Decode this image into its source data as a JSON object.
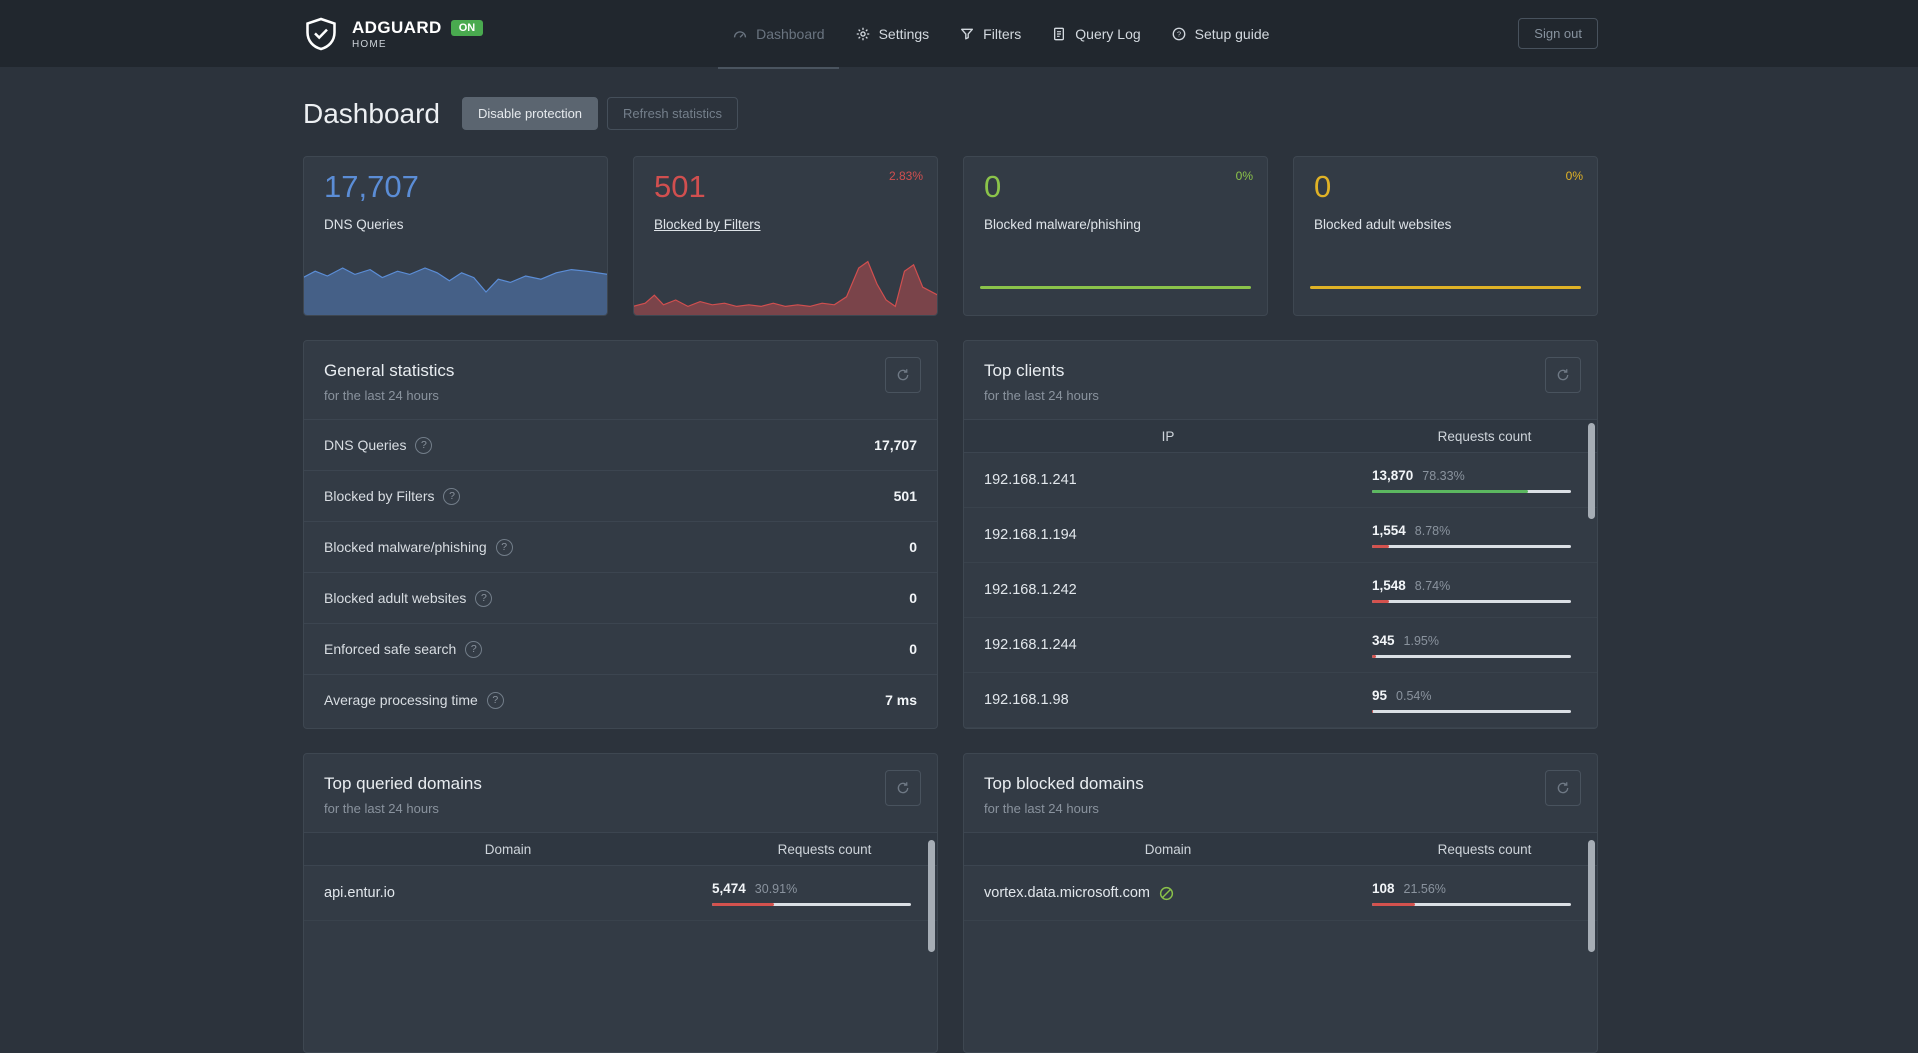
{
  "theme": {
    "accent_blue": "#5b8dd6",
    "accent_red": "#d14f4f",
    "accent_green": "#8bc34a",
    "accent_yellow": "#e0b226",
    "bar_green": "#5cb860",
    "bar_red": "#d4524e",
    "badge_green": "#49aa4f"
  },
  "navbar": {
    "brand": {
      "title": "ADGUARD",
      "subtitle": "HOME",
      "status_badge": "ON",
      "logo_icon": "shield-check-icon"
    },
    "links": [
      {
        "label": "Dashboard",
        "icon": "gauge-icon",
        "active": true
      },
      {
        "label": "Settings",
        "icon": "gear-icon",
        "active": false
      },
      {
        "label": "Filters",
        "icon": "funnel-icon",
        "active": false
      },
      {
        "label": "Query Log",
        "icon": "document-icon",
        "active": false
      },
      {
        "label": "Setup guide",
        "icon": "question-icon",
        "active": false
      }
    ],
    "sign_out_label": "Sign out"
  },
  "page": {
    "title": "Dashboard",
    "buttons": {
      "disable_protection": "Disable protection",
      "refresh_statistics": "Refresh statistics"
    }
  },
  "stat_cards": [
    {
      "value": "17,707",
      "label": "DNS Queries",
      "percent": "",
      "color": "#5b8dd6",
      "label_is_link": false,
      "chart": "blue-area-sparkline",
      "spark": [
        [
          0,
          16
        ],
        [
          4,
          12
        ],
        [
          8,
          15
        ],
        [
          13,
          10
        ],
        [
          17,
          14
        ],
        [
          22,
          11
        ],
        [
          26,
          16
        ],
        [
          31,
          12
        ],
        [
          35,
          14
        ],
        [
          40,
          10
        ],
        [
          44,
          13
        ],
        [
          48,
          18
        ],
        [
          52,
          13
        ],
        [
          56,
          16
        ],
        [
          60,
          25
        ],
        [
          64,
          17
        ],
        [
          68,
          19
        ],
        [
          73,
          15
        ],
        [
          78,
          17
        ],
        [
          83,
          13
        ],
        [
          88,
          11
        ],
        [
          93,
          12
        ],
        [
          100,
          14
        ]
      ]
    },
    {
      "value": "501",
      "label": "Blocked by Filters",
      "percent": "2.83%",
      "color": "#d14f4f",
      "label_is_link": true,
      "chart": "red-area-sparkline",
      "spark": [
        [
          0,
          34
        ],
        [
          4,
          32
        ],
        [
          7,
          27
        ],
        [
          10,
          33
        ],
        [
          14,
          30
        ],
        [
          18,
          34
        ],
        [
          22,
          31
        ],
        [
          26,
          33
        ],
        [
          30,
          32
        ],
        [
          34,
          34
        ],
        [
          38,
          33
        ],
        [
          42,
          34
        ],
        [
          46,
          32
        ],
        [
          50,
          34
        ],
        [
          54,
          33
        ],
        [
          58,
          34
        ],
        [
          62,
          32
        ],
        [
          66,
          33
        ],
        [
          70,
          28
        ],
        [
          74,
          10
        ],
        [
          77,
          6
        ],
        [
          80,
          20
        ],
        [
          83,
          30
        ],
        [
          86,
          34
        ],
        [
          89,
          12
        ],
        [
          92,
          8
        ],
        [
          95,
          22
        ],
        [
          100,
          27
        ]
      ]
    },
    {
      "value": "0",
      "label": "Blocked malware/phishing",
      "percent": "0%",
      "color": "#8bc34a",
      "label_is_link": false,
      "chart": "flat-line"
    },
    {
      "value": "0",
      "label": "Blocked adult websites",
      "percent": "0%",
      "color": "#e0b226",
      "label_is_link": false,
      "chart": "flat-line"
    }
  ],
  "general_statistics": {
    "title": "General statistics",
    "subtitle": "for the last 24 hours",
    "rows": [
      {
        "label": "DNS Queries",
        "value": "17,707"
      },
      {
        "label": "Blocked by Filters",
        "value": "501"
      },
      {
        "label": "Blocked malware/phishing",
        "value": "0"
      },
      {
        "label": "Blocked adult websites",
        "value": "0"
      },
      {
        "label": "Enforced safe search",
        "value": "0"
      },
      {
        "label": "Average processing time",
        "value": "7 ms"
      }
    ]
  },
  "top_clients": {
    "title": "Top clients",
    "subtitle": "for the last 24 hours",
    "columns": {
      "main": "IP",
      "count": "Requests count"
    },
    "rows": [
      {
        "main": "192.168.1.241",
        "count": "13,870",
        "percent": "78.33%",
        "bar_percent": 78.33,
        "bar_color": "green"
      },
      {
        "main": "192.168.1.194",
        "count": "1,554",
        "percent": "8.78%",
        "bar_percent": 8.78,
        "bar_color": "red"
      },
      {
        "main": "192.168.1.242",
        "count": "1,548",
        "percent": "8.74%",
        "bar_percent": 8.74,
        "bar_color": "red"
      },
      {
        "main": "192.168.1.244",
        "count": "345",
        "percent": "1.95%",
        "bar_percent": 1.95,
        "bar_color": "red"
      },
      {
        "main": "192.168.1.98",
        "count": "95",
        "percent": "0.54%",
        "bar_percent": 0.54,
        "bar_color": "red"
      }
    ]
  },
  "top_queried_domains": {
    "title": "Top queried domains",
    "subtitle": "for the last 24 hours",
    "columns": {
      "main": "Domain",
      "count": "Requests count"
    },
    "rows": [
      {
        "main": "api.entur.io",
        "count": "5,474",
        "percent": "30.91%",
        "bar_percent": 30.91,
        "bar_color": "red"
      }
    ]
  },
  "top_blocked_domains": {
    "title": "Top blocked domains",
    "subtitle": "for the last 24 hours",
    "columns": {
      "main": "Domain",
      "count": "Requests count"
    },
    "rows": [
      {
        "main": "vortex.data.microsoft.com",
        "icon": "blocked-service-icon",
        "count": "108",
        "percent": "21.56%",
        "bar_percent": 21.56,
        "bar_color": "red"
      }
    ]
  }
}
